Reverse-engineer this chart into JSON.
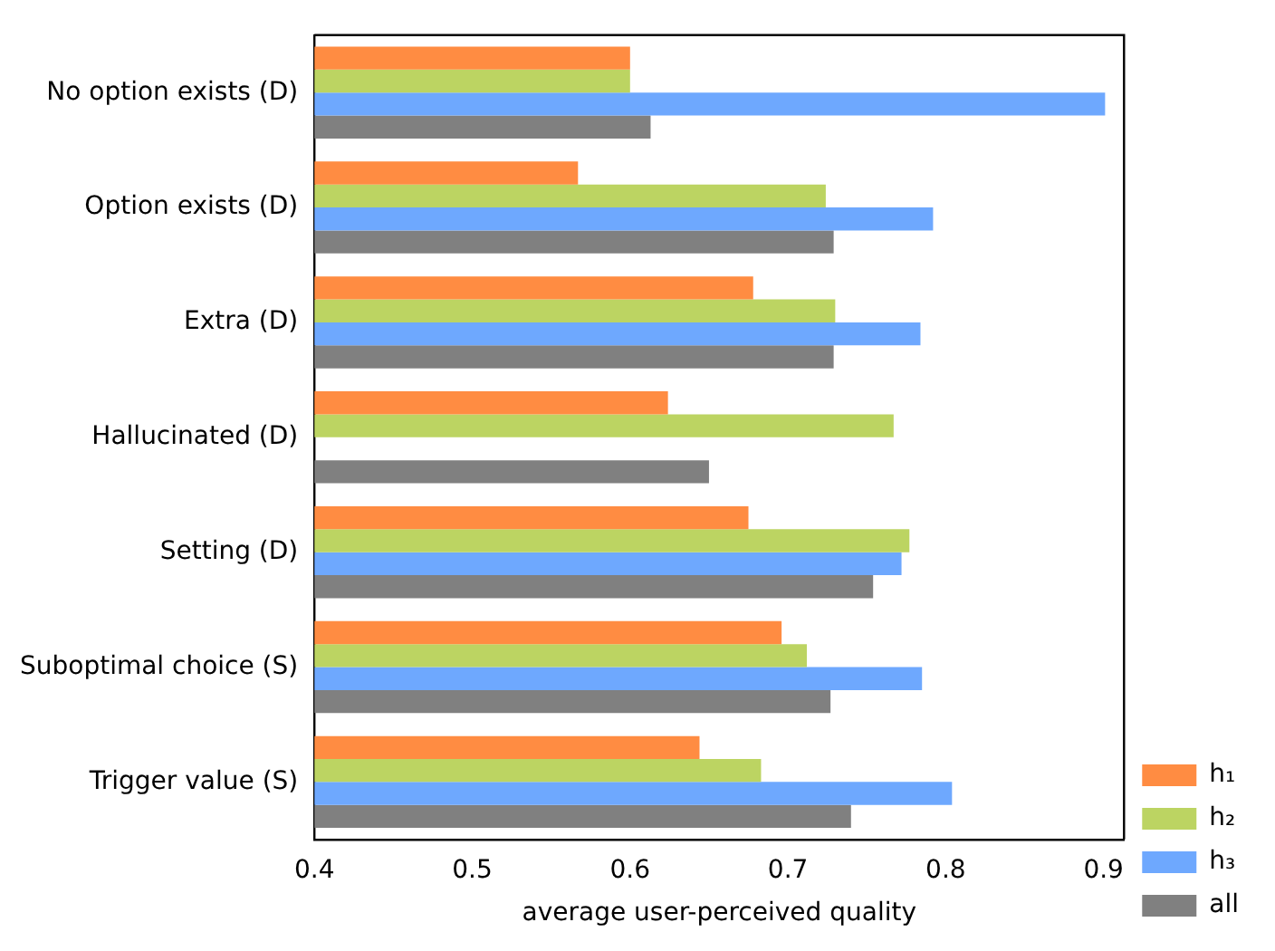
{
  "chart_data": {
    "type": "bar",
    "orientation": "horizontal",
    "xlabel": "average user-perceived quality",
    "categories": [
      "No option exists (D)",
      "Option exists (D)",
      "Extra (D)",
      "Hallucinated (D)",
      "Setting (D)",
      "Suboptimal choice (S)",
      "Trigger value (S)"
    ],
    "series": [
      {
        "name": "h₁",
        "color": "#ff8c42",
        "values": [
          0.6,
          0.567,
          0.678,
          0.624,
          0.675,
          0.696,
          0.644
        ]
      },
      {
        "name": "h₂",
        "color": "#bcd462",
        "values": [
          0.6,
          0.724,
          0.73,
          0.767,
          0.777,
          0.712,
          0.683
        ]
      },
      {
        "name": "h₃",
        "color": "#6ea8fe",
        "values": [
          0.901,
          0.792,
          0.784,
          null,
          0.772,
          0.785,
          0.804
        ]
      },
      {
        "name": "all",
        "color": "#808080",
        "values": [
          0.613,
          0.729,
          0.729,
          0.65,
          0.754,
          0.727,
          0.74
        ]
      }
    ],
    "xlim": [
      0.4,
      0.913
    ],
    "xticks": [
      0.4,
      0.5,
      0.6,
      0.7,
      0.8,
      0.9
    ],
    "grid": false,
    "legend": "bottom right"
  }
}
